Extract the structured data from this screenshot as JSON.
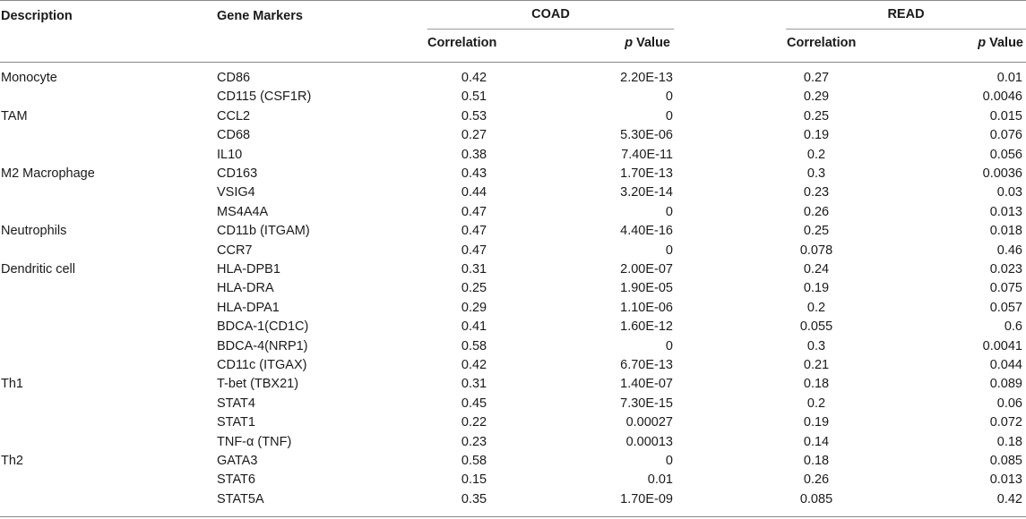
{
  "table": {
    "headers": {
      "description": "Description",
      "gene_markers": "Gene Markers",
      "coad": "COAD",
      "read": "READ",
      "correlation": "Correlation",
      "p_italic": "p",
      "p_value": " Value"
    },
    "rows": [
      {
        "description": "Monocyte",
        "gene": "CD86",
        "coad_corr": "0.42",
        "coad_p": "2.20E-13",
        "read_corr": "0.27",
        "read_p": "0.01"
      },
      {
        "description": "",
        "gene": "CD115 (CSF1R)",
        "coad_corr": "0.51",
        "coad_p": "0",
        "read_corr": "0.29",
        "read_p": "0.0046"
      },
      {
        "description": "TAM",
        "gene": "CCL2",
        "coad_corr": "0.53",
        "coad_p": "0",
        "read_corr": "0.25",
        "read_p": "0.015"
      },
      {
        "description": "",
        "gene": "CD68",
        "coad_corr": "0.27",
        "coad_p": "5.30E-06",
        "read_corr": "0.19",
        "read_p": "0.076"
      },
      {
        "description": "",
        "gene": "IL10",
        "coad_corr": "0.38",
        "coad_p": "7.40E-11",
        "read_corr": "0.2",
        "read_p": "0.056"
      },
      {
        "description": "M2 Macrophage",
        "gene": "CD163",
        "coad_corr": "0.43",
        "coad_p": "1.70E-13",
        "read_corr": "0.3",
        "read_p": "0.0036"
      },
      {
        "description": "",
        "gene": "VSIG4",
        "coad_corr": "0.44",
        "coad_p": "3.20E-14",
        "read_corr": "0.23",
        "read_p": "0.03"
      },
      {
        "description": "",
        "gene": "MS4A4A",
        "coad_corr": "0.47",
        "coad_p": "0",
        "read_corr": "0.26",
        "read_p": "0.013"
      },
      {
        "description": "Neutrophils",
        "gene": "CD11b (ITGAM)",
        "coad_corr": "0.47",
        "coad_p": "4.40E-16",
        "read_corr": "0.25",
        "read_p": "0.018"
      },
      {
        "description": "",
        "gene": "CCR7",
        "coad_corr": "0.47",
        "coad_p": "0",
        "read_corr": "0.078",
        "read_p": "0.46"
      },
      {
        "description": "Dendritic cell",
        "gene": "HLA-DPB1",
        "coad_corr": "0.31",
        "coad_p": "2.00E-07",
        "read_corr": "0.24",
        "read_p": "0.023"
      },
      {
        "description": "",
        "gene": "HLA-DRA",
        "coad_corr": "0.25",
        "coad_p": "1.90E-05",
        "read_corr": "0.19",
        "read_p": "0.075"
      },
      {
        "description": "",
        "gene": "HLA-DPA1",
        "coad_corr": "0.29",
        "coad_p": "1.10E-06",
        "read_corr": "0.2",
        "read_p": "0.057"
      },
      {
        "description": "",
        "gene": "BDCA-1(CD1C)",
        "coad_corr": "0.41",
        "coad_p": "1.60E-12",
        "read_corr": "0.055",
        "read_p": "0.6"
      },
      {
        "description": "",
        "gene": "BDCA-4(NRP1)",
        "coad_corr": "0.58",
        "coad_p": "0",
        "read_corr": "0.3",
        "read_p": "0.0041"
      },
      {
        "description": "",
        "gene": "CD11c (ITGAX)",
        "coad_corr": "0.42",
        "coad_p": "6.70E-13",
        "read_corr": "0.21",
        "read_p": "0.044"
      },
      {
        "description": "Th1",
        "gene": "T-bet (TBX21)",
        "coad_corr": "0.31",
        "coad_p": "1.40E-07",
        "read_corr": "0.18",
        "read_p": "0.089"
      },
      {
        "description": "",
        "gene": "STAT4",
        "coad_corr": "0.45",
        "coad_p": "7.30E-15",
        "read_corr": "0.2",
        "read_p": "0.06"
      },
      {
        "description": "",
        "gene": "STAT1",
        "coad_corr": "0.22",
        "coad_p": "0.00027",
        "read_corr": "0.19",
        "read_p": "0.072"
      },
      {
        "description": "",
        "gene": "TNF-α (TNF)",
        "coad_corr": "0.23",
        "coad_p": "0.00013",
        "read_corr": "0.14",
        "read_p": "0.18"
      },
      {
        "description": "Th2",
        "gene": "GATA3",
        "coad_corr": "0.58",
        "coad_p": "0",
        "read_corr": "0.18",
        "read_p": "0.085"
      },
      {
        "description": "",
        "gene": "STAT6",
        "coad_corr": "0.15",
        "coad_p": "0.01",
        "read_corr": "0.26",
        "read_p": "0.013"
      },
      {
        "description": "",
        "gene": "STAT5A",
        "coad_corr": "0.35",
        "coad_p": "1.70E-09",
        "read_corr": "0.085",
        "read_p": "0.42"
      }
    ]
  }
}
